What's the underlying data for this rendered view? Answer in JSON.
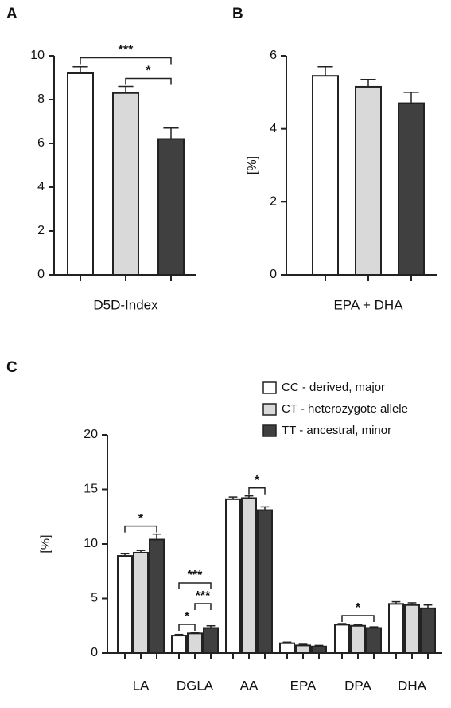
{
  "chart_data": [
    {
      "type": "bar",
      "panel": "A",
      "xlabel": "D5D-Index",
      "values": [
        9.2,
        8.3,
        6.2
      ],
      "errors": [
        0.3,
        0.3,
        0.5
      ],
      "colors": [
        "#ffffff",
        "#d9d9d9",
        "#404040"
      ],
      "ylim": [
        0,
        10
      ],
      "yticks": [
        0,
        2,
        4,
        6,
        8,
        10
      ],
      "annotations": [
        {
          "from": 1,
          "to": 2,
          "label": "*"
        },
        {
          "from": 0,
          "to": 2,
          "label": "***"
        }
      ]
    },
    {
      "type": "bar",
      "panel": "B",
      "ylabel": "[%]",
      "xlabel": "EPA + DHA",
      "values": [
        5.45,
        5.15,
        4.7
      ],
      "errors": [
        0.25,
        0.2,
        0.3
      ],
      "colors": [
        "#ffffff",
        "#d9d9d9",
        "#404040"
      ],
      "ylim": [
        0,
        6
      ],
      "yticks": [
        0,
        2,
        4,
        6
      ],
      "annotations": []
    },
    {
      "type": "bar",
      "panel": "C",
      "ylabel": "[%]",
      "categories": [
        "LA",
        "DGLA",
        "AA",
        "EPA",
        "DPA",
        "DHA"
      ],
      "series": [
        {
          "name": "CC - derived, major",
          "color": "#ffffff",
          "values": [
            8.9,
            1.6,
            14.1,
            0.9,
            2.6,
            4.5
          ],
          "errors": [
            0.2,
            0.1,
            0.2,
            0.1,
            0.1,
            0.2
          ]
        },
        {
          "name": "CT - heterozygote allele",
          "color": "#d9d9d9",
          "values": [
            9.2,
            1.8,
            14.2,
            0.7,
            2.5,
            4.4
          ],
          "errors": [
            0.2,
            0.1,
            0.2,
            0.1,
            0.1,
            0.2
          ]
        },
        {
          "name": "TT - ancestral, minor",
          "color": "#404040",
          "values": [
            10.4,
            2.3,
            13.1,
            0.6,
            2.3,
            4.1
          ],
          "errors": [
            0.5,
            0.2,
            0.3,
            0.1,
            0.1,
            0.3
          ]
        }
      ],
      "ylim": [
        0,
        20
      ],
      "yticks": [
        0,
        5,
        10,
        15,
        20
      ],
      "annotations": [
        {
          "category": 0,
          "from": 0,
          "to": 2,
          "label": "*"
        },
        {
          "category": 1,
          "from": 0,
          "to": 1,
          "label": "*"
        },
        {
          "category": 1,
          "from": 1,
          "to": 2,
          "label": "***"
        },
        {
          "category": 1,
          "from": 0,
          "to": 2,
          "label": "***"
        },
        {
          "category": 2,
          "from": 1,
          "to": 2,
          "label": "*"
        },
        {
          "category": 4,
          "from": 0,
          "to": 2,
          "label": "*"
        }
      ]
    }
  ]
}
